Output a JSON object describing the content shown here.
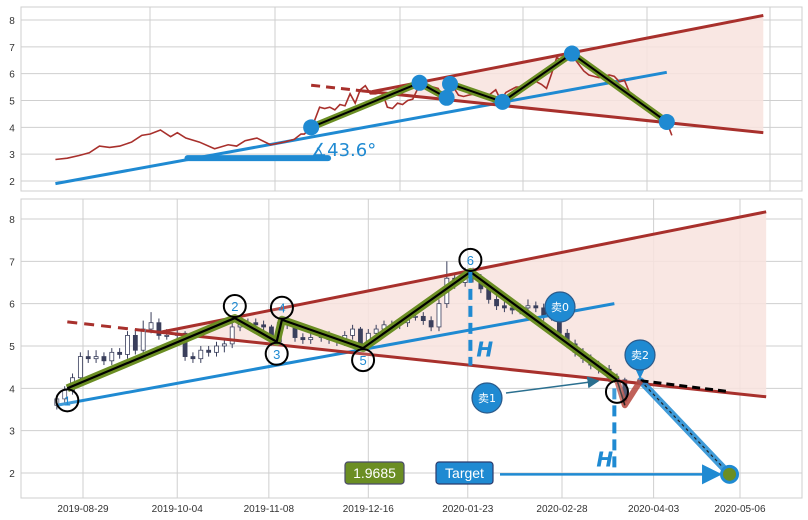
{
  "chart_data": {
    "type": "candlestick",
    "colors": {
      "resistance": "#a8302c",
      "support": "#1f8ad2",
      "zigzag": "#6b8e23",
      "zigzag_core": "#000000",
      "fill": "#f8e3de",
      "candle": "#3a3f5c",
      "target_box": "#1f8ad2",
      "value_box": "#6b8e23"
    },
    "grid": true,
    "panels": [
      {
        "name": "overview",
        "ylim": [
          1.6,
          8.45
        ],
        "yticks": [
          2,
          3,
          4,
          5,
          6,
          7,
          8
        ],
        "pre_history_line": [
          [
            "2019-03-25",
            2.8
          ],
          [
            "2019-04-01",
            2.85
          ],
          [
            "2019-04-08",
            2.95
          ],
          [
            "2019-04-14",
            3.05
          ],
          [
            "2019-04-20",
            3.3
          ],
          [
            "2019-04-26",
            3.25
          ],
          [
            "2019-05-02",
            3.3
          ],
          [
            "2019-05-09",
            3.45
          ],
          [
            "2019-05-15",
            3.7
          ],
          [
            "2019-05-20",
            3.75
          ],
          [
            "2019-05-26",
            3.9
          ],
          [
            "2019-06-01",
            3.65
          ],
          [
            "2019-06-05",
            3.8
          ],
          [
            "2019-06-10",
            3.6
          ],
          [
            "2019-06-18",
            3.45
          ],
          [
            "2019-06-27",
            3.2
          ],
          [
            "2019-07-05",
            3.35
          ],
          [
            "2019-07-10",
            3.3
          ],
          [
            "2019-07-15",
            3.5
          ],
          [
            "2019-07-22",
            3.6
          ],
          [
            "2019-07-30",
            3.35
          ],
          [
            "2019-08-07",
            3.45
          ],
          [
            "2019-08-13",
            3.55
          ],
          [
            "2019-08-17",
            3.75
          ]
        ],
        "angle_baseline": {
          "from": [
            "2019-06-11",
            2.85
          ],
          "to": [
            "2019-09-02",
            2.85
          ]
        },
        "angle_label": "∡43.6°",
        "support_line": {
          "from": [
            "2019-03-25",
            1.9
          ],
          "to": [
            "2020-03-20",
            6.05
          ]
        }
      },
      {
        "name": "detail",
        "ylim": [
          1.45,
          8.45
        ],
        "yticks": [
          2,
          3,
          4,
          5,
          6,
          7,
          8
        ],
        "xticks": [
          "2019-08-29",
          "2019-10-04",
          "2019-11-08",
          "2019-12-16",
          "2020-01-23",
          "2020-02-28",
          "2020-04-03",
          "2020-05-06"
        ],
        "support_line": {
          "from": [
            "2019-08-19",
            3.6
          ],
          "to": [
            "2020-03-19",
            6.0
          ]
        }
      }
    ],
    "candles_columns": [
      "date",
      "open",
      "high",
      "low",
      "close"
    ],
    "candles": [
      [
        "2019-08-19",
        3.6,
        3.85,
        3.5,
        3.75
      ],
      [
        "2019-08-22",
        3.75,
        4.05,
        3.65,
        3.95
      ],
      [
        "2019-08-25",
        3.95,
        4.35,
        3.85,
        4.25
      ],
      [
        "2019-08-28",
        4.25,
        4.85,
        4.15,
        4.75
      ],
      [
        "2019-08-31",
        4.75,
        4.9,
        4.6,
        4.7
      ],
      [
        "2019-09-03",
        4.7,
        4.9,
        4.6,
        4.75
      ],
      [
        "2019-09-06",
        4.75,
        4.85,
        4.55,
        4.65
      ],
      [
        "2019-09-09",
        4.65,
        4.95,
        4.55,
        4.85
      ],
      [
        "2019-09-12",
        4.85,
        4.95,
        4.7,
        4.8
      ],
      [
        "2019-09-15",
        4.8,
        5.35,
        4.7,
        5.25
      ],
      [
        "2019-09-18",
        5.25,
        5.4,
        4.8,
        4.9
      ],
      [
        "2019-09-21",
        4.9,
        5.6,
        4.8,
        5.4
      ],
      [
        "2019-09-24",
        5.4,
        5.8,
        5.3,
        5.55
      ],
      [
        "2019-09-27",
        5.55,
        5.65,
        5.15,
        5.25
      ],
      [
        "2019-09-30",
        5.25,
        5.4,
        5.15,
        5.25
      ],
      [
        "2019-10-04",
        5.25,
        5.4,
        5.15,
        5.3
      ],
      [
        "2019-10-07",
        5.3,
        5.35,
        4.65,
        4.75
      ],
      [
        "2019-10-10",
        4.75,
        4.85,
        4.6,
        4.7
      ],
      [
        "2019-10-13",
        4.7,
        5.0,
        4.6,
        4.9
      ],
      [
        "2019-10-16",
        4.9,
        5.0,
        4.75,
        4.85
      ],
      [
        "2019-10-19",
        4.85,
        5.1,
        4.75,
        5.0
      ],
      [
        "2019-10-22",
        5.0,
        5.15,
        4.85,
        5.05
      ],
      [
        "2019-10-25",
        5.05,
        5.55,
        4.95,
        5.45
      ],
      [
        "2019-10-28",
        5.45,
        5.6,
        5.35,
        5.5
      ],
      [
        "2019-10-31",
        5.5,
        5.65,
        5.4,
        5.55
      ],
      [
        "2019-11-03",
        5.55,
        5.65,
        5.4,
        5.5
      ],
      [
        "2019-11-06",
        5.5,
        5.6,
        5.35,
        5.45
      ],
      [
        "2019-11-09",
        5.45,
        5.5,
        5.0,
        5.1
      ],
      [
        "2019-11-12",
        5.1,
        5.65,
        5.0,
        5.55
      ],
      [
        "2019-11-15",
        5.55,
        5.65,
        5.4,
        5.5
      ],
      [
        "2019-11-18",
        5.5,
        5.55,
        5.1,
        5.2
      ],
      [
        "2019-11-21",
        5.2,
        5.3,
        5.05,
        5.15
      ],
      [
        "2019-11-24",
        5.15,
        5.3,
        5.05,
        5.2
      ],
      [
        "2019-11-28",
        5.2,
        5.35,
        5.1,
        5.25
      ],
      [
        "2019-12-01",
        5.25,
        5.35,
        5.05,
        5.15
      ],
      [
        "2019-12-04",
        5.15,
        5.25,
        5.0,
        5.1
      ],
      [
        "2019-12-07",
        5.1,
        5.35,
        5.0,
        5.25
      ],
      [
        "2019-12-10",
        5.25,
        5.5,
        5.15,
        5.4
      ],
      [
        "2019-12-13",
        5.4,
        5.45,
        4.95,
        5.0
      ],
      [
        "2019-12-16",
        5.0,
        5.4,
        4.9,
        5.3
      ],
      [
        "2019-12-19",
        5.3,
        5.5,
        5.2,
        5.4
      ],
      [
        "2019-12-22",
        5.4,
        5.6,
        5.3,
        5.5
      ],
      [
        "2019-12-25",
        5.5,
        5.6,
        5.4,
        5.5
      ],
      [
        "2019-12-28",
        5.5,
        5.65,
        5.4,
        5.55
      ],
      [
        "2019-12-31",
        5.55,
        5.8,
        5.45,
        5.7
      ],
      [
        "2020-01-03",
        5.7,
        5.8,
        5.6,
        5.7
      ],
      [
        "2020-01-06",
        5.7,
        5.8,
        5.5,
        5.6
      ],
      [
        "2020-01-09",
        5.6,
        5.7,
        5.35,
        5.45
      ],
      [
        "2020-01-12",
        5.45,
        6.1,
        5.35,
        6.0
      ],
      [
        "2020-01-15",
        6.0,
        7.0,
        5.9,
        6.6
      ],
      [
        "2020-01-18",
        6.6,
        6.7,
        6.35,
        6.5
      ],
      [
        "2020-01-22",
        6.5,
        6.85,
        6.4,
        6.75
      ],
      [
        "2020-01-25",
        6.75,
        6.85,
        6.5,
        6.6
      ],
      [
        "2020-01-28",
        6.6,
        6.7,
        6.25,
        6.35
      ],
      [
        "2020-01-31",
        6.35,
        6.45,
        6.0,
        6.1
      ],
      [
        "2020-02-03",
        6.1,
        6.2,
        5.85,
        5.95
      ],
      [
        "2020-02-06",
        5.95,
        6.05,
        5.8,
        5.9
      ],
      [
        "2020-02-09",
        5.9,
        6.0,
        5.75,
        5.85
      ],
      [
        "2020-02-12",
        5.85,
        6.0,
        5.75,
        5.9
      ],
      [
        "2020-02-15",
        5.9,
        6.1,
        5.8,
        5.95
      ],
      [
        "2020-02-18",
        5.95,
        6.05,
        5.8,
        5.9
      ],
      [
        "2020-02-21",
        5.9,
        6.0,
        5.6,
        5.7
      ],
      [
        "2020-02-24",
        5.7,
        5.85,
        5.6,
        5.75
      ],
      [
        "2020-02-27",
        5.75,
        5.85,
        5.2,
        5.3
      ],
      [
        "2020-03-01",
        5.3,
        5.4,
        4.95,
        5.05
      ],
      [
        "2020-03-04",
        5.05,
        5.15,
        4.75,
        4.85
      ],
      [
        "2020-03-07",
        4.85,
        4.95,
        4.6,
        4.7
      ],
      [
        "2020-03-10",
        4.7,
        4.8,
        4.45,
        4.55
      ],
      [
        "2020-03-13",
        4.55,
        4.65,
        4.35,
        4.45
      ],
      [
        "2020-03-17",
        4.45,
        4.55,
        4.15,
        4.25
      ],
      [
        "2020-03-20",
        4.25,
        4.35,
        4.1,
        4.2
      ],
      [
        "2020-03-23",
        4.2,
        4.25,
        3.6,
        3.7
      ]
    ],
    "pivots": [
      {
        "label": "1",
        "date": "2019-08-23",
        "value": 4.0,
        "label_position": "below"
      },
      {
        "label": "2",
        "date": "2019-10-26",
        "value": 5.66,
        "label_position": "above"
      },
      {
        "label": "3",
        "date": "2019-11-11",
        "value": 5.1,
        "label_position": "below"
      },
      {
        "label": "4",
        "date": "2019-11-13",
        "value": 5.62,
        "label_position": "above"
      },
      {
        "label": "5",
        "date": "2019-12-14",
        "value": 4.95,
        "label_position": "below"
      },
      {
        "label": "6",
        "date": "2020-01-24",
        "value": 6.75,
        "label_position": "above"
      },
      {
        "label": "",
        "date": "2020-03-20",
        "value": 4.2,
        "label_position": "below"
      }
    ],
    "resistance_upper": {
      "from": [
        "2019-09-28",
        5.33
      ],
      "to": [
        "2020-05-16",
        8.17
      ]
    },
    "resistance_lower_dashed": {
      "from": [
        "2019-08-23",
        5.57
      ],
      "to": [
        "2019-09-22",
        5.36
      ]
    },
    "resistance_lower": {
      "from": [
        "2019-09-22",
        5.36
      ],
      "to": [
        "2020-05-16",
        3.8
      ]
    },
    "height_marker": {
      "label": "H",
      "date": "2020-01-24",
      "from": 6.75,
      "to": 4.54
    },
    "projection_marker": {
      "label": "H",
      "date": "2020-03-19",
      "from": 4.0,
      "to": 1.9685
    },
    "pullback": [
      [
        "2020-03-20",
        4.2
      ],
      [
        "2020-03-23",
        3.6
      ],
      [
        "2020-03-29",
        4.18
      ]
    ],
    "breakout_extension": {
      "from": [
        "2020-03-29",
        4.18
      ],
      "to": [
        "2020-05-02",
        3.92
      ]
    },
    "target_path": {
      "from": [
        "2020-03-29",
        4.18
      ],
      "to": [
        "2020-05-02",
        1.9685
      ]
    },
    "target": {
      "label": "Target",
      "value": 1.9685,
      "value_label": "1.9685",
      "date": "2020-05-02"
    },
    "sell_signals": [
      {
        "label": "卖0"
      },
      {
        "label": "卖1"
      },
      {
        "label": "卖2"
      }
    ]
  }
}
